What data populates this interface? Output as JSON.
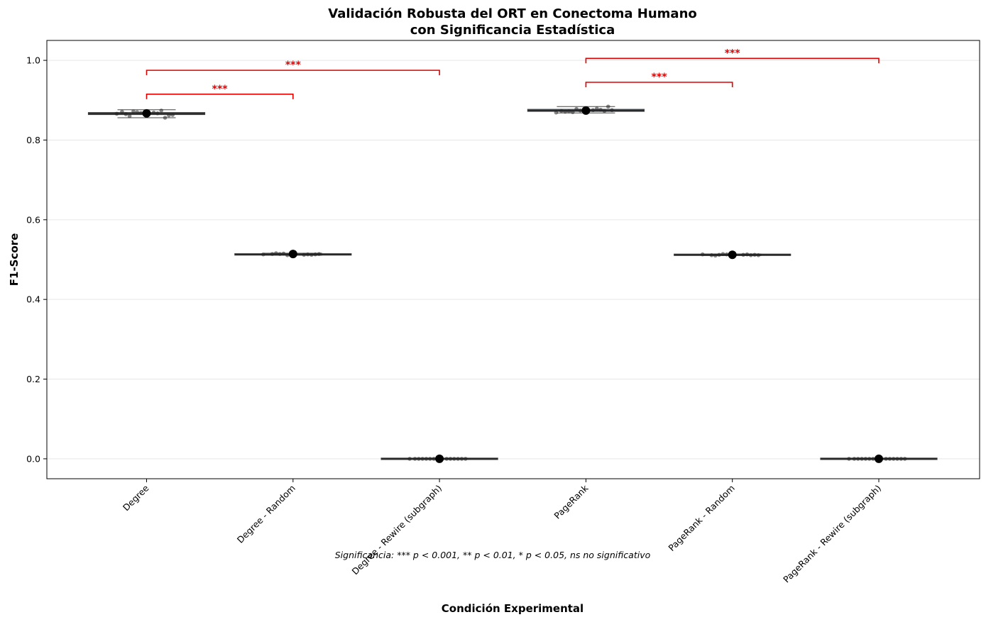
{
  "chart_data": {
    "type": "box",
    "title": "Validación Robusta del ORT en Conectoma Humano",
    "subtitle": "con Significancia Estadística",
    "xlabel": "Condición Experimental",
    "ylabel": "F1-Score",
    "ylim": [
      -0.05,
      1.05
    ],
    "yticks": [
      "0.0",
      "0.2",
      "0.4",
      "0.6",
      "0.8",
      "1.0"
    ],
    "grid": "y",
    "categories": [
      "Degree",
      "Degree - Random",
      "Degree - Rewire (subgraph)",
      "PageRank",
      "PageRank - Random",
      "PageRank - Rewire (subgraph)"
    ],
    "boxes": [
      {
        "category": "Degree",
        "mean": 0.867,
        "q1": 0.864,
        "median": 0.866,
        "q3": 0.869,
        "whisker_low": 0.856,
        "whisker_high": 0.876,
        "fill": "#3a5570",
        "points": [
          0.866,
          0.864,
          0.863,
          0.868,
          0.862,
          0.87,
          0.856,
          0.872,
          0.874,
          0.86,
          0.867,
          0.865,
          0.869,
          0.871
        ]
      },
      {
        "category": "Degree - Random",
        "mean": 0.514,
        "q1": 0.512,
        "median": 0.513,
        "q3": 0.514,
        "whisker_low": 0.511,
        "whisker_high": 0.516,
        "fill": "#4a4a4a",
        "points": [
          0.513,
          0.512,
          0.514,
          0.511,
          0.513,
          0.515,
          0.512,
          0.514,
          0.513,
          0.516,
          0.512,
          0.514
        ]
      },
      {
        "category": "Degree - Rewire (subgraph)",
        "mean": 0.0,
        "q1": 0.0,
        "median": 0.0,
        "q3": 0.0,
        "whisker_low": 0.0,
        "whisker_high": 0.0,
        "fill": "#4a4a4a",
        "points": [
          0.0,
          0.0,
          0.0,
          0.0,
          0.0,
          0.0,
          0.0,
          0.0,
          0.0,
          0.0,
          0.0,
          0.0,
          0.0,
          0.0
        ]
      },
      {
        "category": "PageRank",
        "mean": 0.874,
        "q1": 0.872,
        "median": 0.874,
        "q3": 0.877,
        "whisker_low": 0.868,
        "whisker_high": 0.884,
        "fill": "#3a5570",
        "points": [
          0.869,
          0.872,
          0.875,
          0.874,
          0.884,
          0.878,
          0.873,
          0.87,
          0.876,
          0.872,
          0.879,
          0.871,
          0.875,
          0.873
        ]
      },
      {
        "category": "PageRank - Random",
        "mean": 0.512,
        "q1": 0.511,
        "median": 0.512,
        "q3": 0.513,
        "whisker_low": 0.51,
        "whisker_high": 0.514,
        "fill": "#4a4a4a",
        "points": [
          0.513,
          0.512,
          0.511,
          0.513,
          0.512,
          0.514,
          0.511,
          0.512,
          0.513,
          0.51,
          0.512,
          0.511
        ]
      },
      {
        "category": "PageRank - Rewire (subgraph)",
        "mean": 0.0,
        "q1": 0.0,
        "median": 0.0,
        "q3": 0.0,
        "whisker_low": 0.0,
        "whisker_high": 0.0,
        "fill": "#4a4a4a",
        "points": [
          0.0,
          0.0,
          0.0,
          0.0,
          0.0,
          0.0,
          0.0,
          0.0,
          0.0,
          0.0,
          0.0,
          0.0,
          0.0,
          0.0
        ]
      }
    ],
    "significance": [
      {
        "from": "Degree",
        "to": "Degree - Random",
        "y": 0.915,
        "label": "***"
      },
      {
        "from": "Degree",
        "to": "Degree - Rewire (subgraph)",
        "y": 0.975,
        "label": "***"
      },
      {
        "from": "PageRank",
        "to": "PageRank - Random",
        "y": 0.945,
        "label": "***"
      },
      {
        "from": "PageRank",
        "to": "PageRank - Rewire (subgraph)",
        "y": 1.005,
        "label": "***"
      }
    ],
    "significance_color": "#e00000",
    "footnote": "Significancia: *** p < 0.001, ** p < 0.01, * p < 0.05, ns no significativo"
  }
}
